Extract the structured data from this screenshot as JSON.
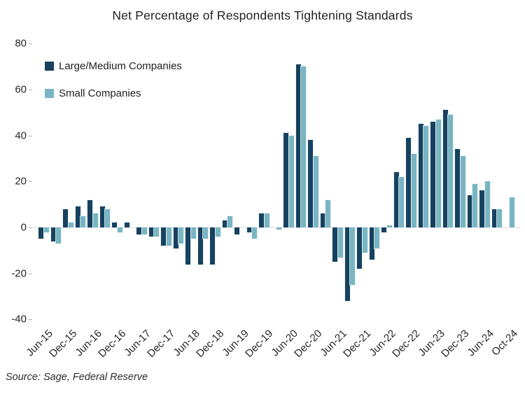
{
  "title": "Net Percentage of Respondents Tightening Standards",
  "source": "Source: Sage, Federal Reserve",
  "colors": {
    "large_medium": "#17425f",
    "small": "#79b5c3",
    "zero_line": "#d9d9d9",
    "axis_text": "#262626"
  },
  "chart_data": {
    "type": "bar",
    "title": "Net Percentage of Respondents Tightening Standards",
    "xlabel": "",
    "ylabel": "",
    "ylim": [
      -40,
      80
    ],
    "yticks": [
      80,
      60,
      40,
      20,
      0,
      -20,
      -40
    ],
    "grid": "zero-line only",
    "legend_position": "top-left inside plot",
    "x_frequency": "quarterly",
    "x_tick_labels": [
      "Jun-15",
      "Dec-15",
      "Jun-16",
      "Dec-16",
      "Jun-17",
      "Dec-17",
      "Jun-18",
      "Dec-18",
      "Jun-19",
      "Dec-19",
      "Jun-20",
      "Dec-20",
      "Jun-21",
      "Dec-21",
      "Jun-22",
      "Dec-22",
      "Jun-23",
      "Dec-23",
      "Jun-24",
      "Oct-24"
    ],
    "tick_label_every_n_bars": 2,
    "series": [
      {
        "name": "Large/Medium Companies",
        "color": "#17425f",
        "values": [
          -5,
          -6,
          8,
          9,
          12,
          9,
          2,
          2,
          -3,
          -4,
          -8,
          -9,
          -16,
          -16,
          -16,
          3,
          -3,
          -2,
          6,
          0,
          41,
          71,
          38,
          6,
          -15,
          -32,
          -18,
          -14,
          -2,
          24,
          39,
          45,
          46,
          51,
          34,
          14,
          16,
          8,
          0
        ]
      },
      {
        "name": "Small Companies",
        "color": "#79b5c3",
        "values": [
          -2,
          -7,
          2,
          5,
          6,
          8,
          -2,
          0,
          -3,
          -4,
          -8,
          -7,
          -5,
          -5,
          -4,
          5,
          0,
          -5,
          6,
          -1,
          40,
          70,
          31,
          12,
          -13,
          -25,
          -11,
          -9,
          1,
          22,
          32,
          44,
          47,
          49,
          31,
          19,
          20,
          8,
          13
        ]
      }
    ]
  }
}
